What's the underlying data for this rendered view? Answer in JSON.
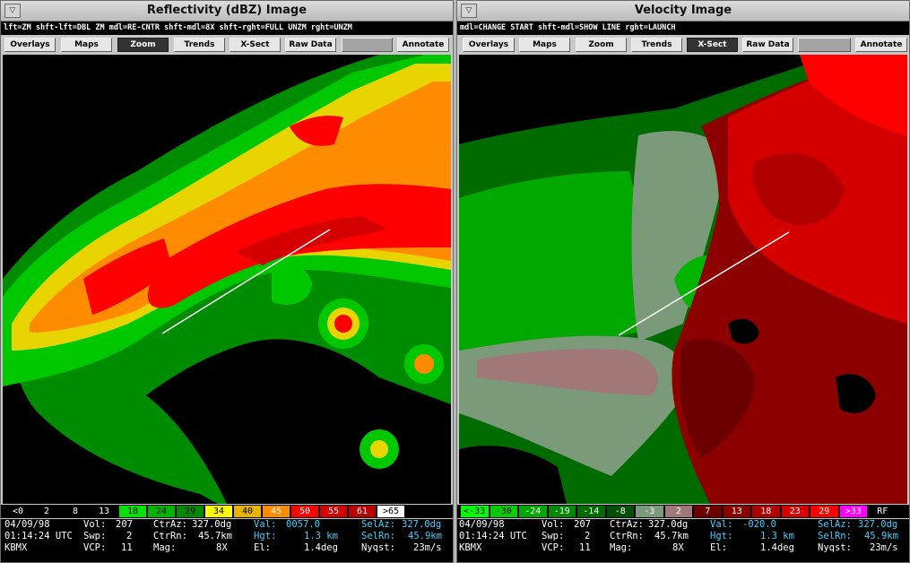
{
  "left": {
    "title": "Reflectivity (dBZ) Image",
    "hint": "lft=ZM   shft-lft=DBL ZM   mdl=RE-CNTR   shft-mdl=8X   shft-rght=FULL UNZM   rght=UNZM",
    "buttons": [
      "Overlays",
      "Maps",
      "Zoom",
      "Trends",
      "X-Sect",
      "Raw Data",
      "",
      "Annotate"
    ],
    "scale": [
      {
        "label": "<0",
        "bg": "#000000",
        "fg": "#ffffff"
      },
      {
        "label": "2",
        "bg": "#000000",
        "fg": "#ffffff"
      },
      {
        "label": "8",
        "bg": "#000000",
        "fg": "#ffffff"
      },
      {
        "label": "13",
        "bg": "#000000",
        "fg": "#ffffff"
      },
      {
        "label": "18",
        "bg": "#00e400",
        "fg": "#000000"
      },
      {
        "label": "24",
        "bg": "#00b400",
        "fg": "#000000"
      },
      {
        "label": "29",
        "bg": "#008c00",
        "fg": "#000000"
      },
      {
        "label": "34",
        "bg": "#ffff00",
        "fg": "#000000"
      },
      {
        "label": "40",
        "bg": "#e8b400",
        "fg": "#000000"
      },
      {
        "label": "45",
        "bg": "#ff8c00",
        "fg": "#ffffff"
      },
      {
        "label": "50",
        "bg": "#ff0000",
        "fg": "#ffffff"
      },
      {
        "label": "55",
        "bg": "#d40000",
        "fg": "#ffffff"
      },
      {
        "label": "61",
        "bg": "#b80000",
        "fg": "#ffffff"
      },
      {
        "label": ">65",
        "bg": "#ffffff",
        "fg": "#000000"
      }
    ],
    "date": "04/09/98",
    "time": "01:14:24 UTC",
    "site": "KBMX",
    "vol_label": "Vol:",
    "vol": "207",
    "swp_label": "Swp:",
    "swp": "2",
    "vcp_label": "VCP:",
    "vcp": "11",
    "ctraz_label": "CtrAz:",
    "ctraz": "327.0dg",
    "ctrrn_label": "CtrRn:",
    "ctrrn": "45.7km",
    "mag_label": "Mag:",
    "mag": "8X",
    "val_label": "Val:",
    "val": "0057.0",
    "hgt_label": "Hgt:",
    "hgt": "1.3 km",
    "el_label": "El:",
    "el": "1.4deg",
    "selaz_label": "SelAz:",
    "selaz": "327.0dg",
    "selrn_label": "SelRn:",
    "selrn": "45.9km",
    "nyq_label": "Nyqst:",
    "nyq": "23m/s"
  },
  "right": {
    "title": "Velocity Image",
    "hint": "mdl=CHANGE START  shft-mdl=SHOW LINE  rght=LAUNCH",
    "buttons": [
      "Overlays",
      "Maps",
      "Zoom",
      "Trends",
      "X-Sect",
      "Raw Data",
      "",
      "Annotate"
    ],
    "scale": [
      {
        "label": "<-33",
        "bg": "#00ff00",
        "fg": "#000000"
      },
      {
        "label": "-30",
        "bg": "#00d000",
        "fg": "#000000"
      },
      {
        "label": "-24",
        "bg": "#00a800",
        "fg": "#ffffff"
      },
      {
        "label": "-19",
        "bg": "#008800",
        "fg": "#ffffff"
      },
      {
        "label": "-14",
        "bg": "#006c00",
        "fg": "#ffffff"
      },
      {
        "label": "-8",
        "bg": "#005000",
        "fg": "#ffffff"
      },
      {
        "label": "-3",
        "bg": "#7a9a7a",
        "fg": "#ffffff"
      },
      {
        "label": "2",
        "bg": "#a07878",
        "fg": "#ffffff"
      },
      {
        "label": "7",
        "bg": "#6c0000",
        "fg": "#ffffff"
      },
      {
        "label": "13",
        "bg": "#8c0000",
        "fg": "#ffffff"
      },
      {
        "label": "18",
        "bg": "#b00000",
        "fg": "#ffffff"
      },
      {
        "label": "23",
        "bg": "#d40000",
        "fg": "#ffffff"
      },
      {
        "label": "29",
        "bg": "#ff0000",
        "fg": "#ffffff"
      },
      {
        "label": ">33",
        "bg": "#ff00ff",
        "fg": "#ffffff"
      },
      {
        "label": "RF",
        "bg": "#000000",
        "fg": "#ffffff"
      }
    ],
    "date": "04/09/98",
    "time": "01:14:24 UTC",
    "site": "KBMX",
    "vol_label": "Vol:",
    "vol": "207",
    "swp_label": "Swp:",
    "swp": "2",
    "vcp_label": "VCP:",
    "vcp": "11",
    "ctraz_label": "CtrAz:",
    "ctraz": "327.0dg",
    "ctrrn_label": "CtrRn:",
    "ctrrn": "45.7km",
    "mag_label": "Mag:",
    "mag": "8X",
    "val_label": "Val:",
    "val": "-020.0",
    "hgt_label": "Hgt:",
    "hgt": "1.3 km",
    "el_label": "El:",
    "el": "1.4deg",
    "selaz_label": "SelAz:",
    "selaz": "327.0dg",
    "selrn_label": "SelRn:",
    "selrn": "45.9km",
    "nyq_label": "Nyqst:",
    "nyq": "23m/s"
  }
}
